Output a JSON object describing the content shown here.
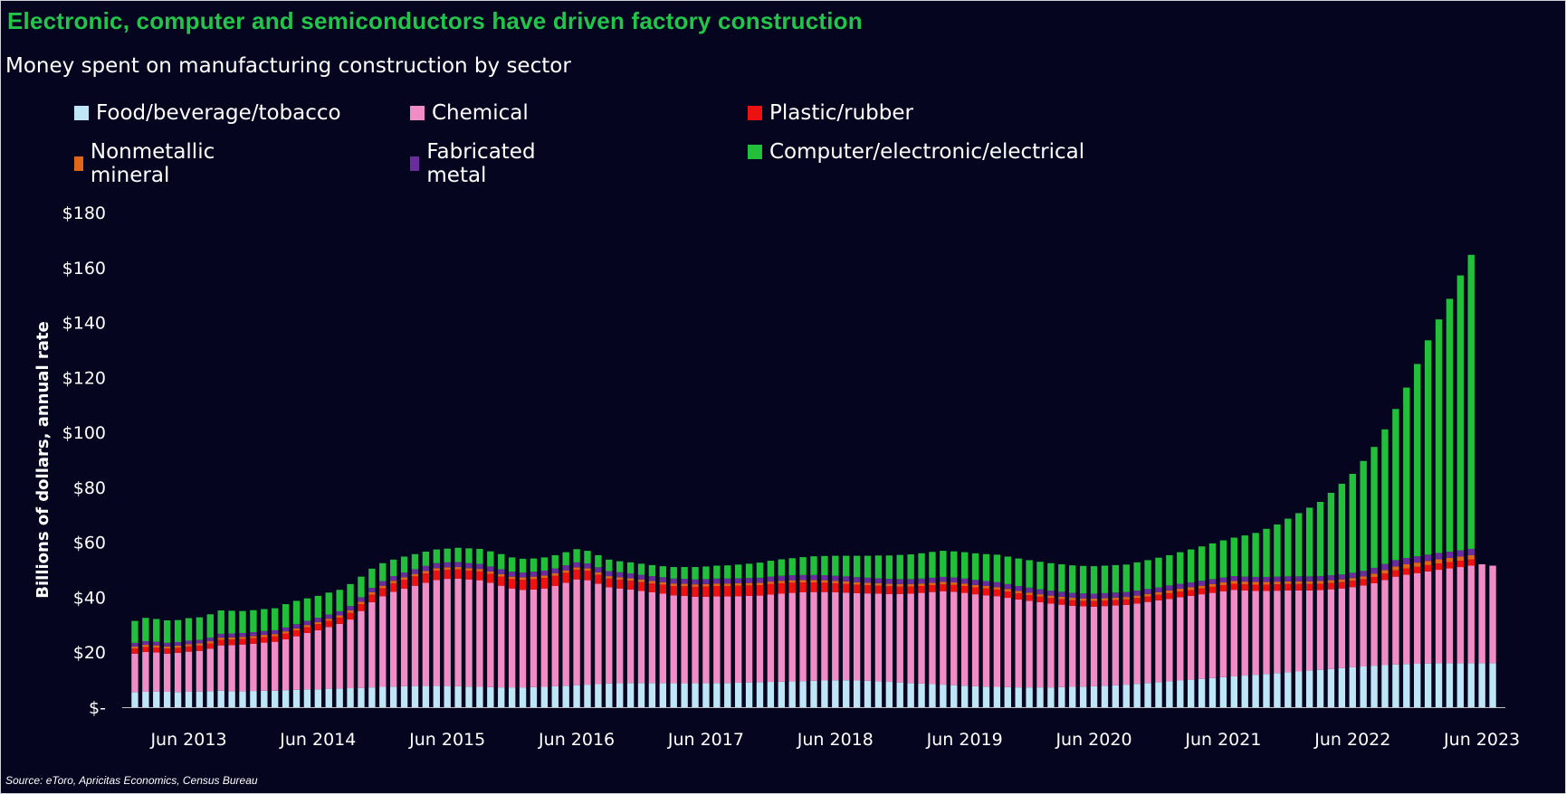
{
  "chart_data": {
    "type": "bar",
    "stacked": true,
    "title": "Electronic, computer and semiconductors have driven factory construction",
    "subtitle": "Money spent on manufacturing construction by sector",
    "ylabel": "Billions of dollars, annual rate",
    "ylim": [
      0,
      180
    ],
    "y_ticks": [
      {
        "value": 0,
        "label": "$-"
      },
      {
        "value": 20,
        "label": "$20"
      },
      {
        "value": 40,
        "label": "$40"
      },
      {
        "value": 60,
        "label": "$60"
      },
      {
        "value": 80,
        "label": "$80"
      },
      {
        "value": 100,
        "label": "$100"
      },
      {
        "value": 120,
        "label": "$120"
      },
      {
        "value": 140,
        "label": "$140"
      },
      {
        "value": 160,
        "label": "$160"
      },
      {
        "value": 180,
        "label": "$180"
      }
    ],
    "x_ticks": [
      {
        "index": 5,
        "label": "Jun 2013"
      },
      {
        "index": 17,
        "label": "Jun 2014"
      },
      {
        "index": 29,
        "label": "Jun 2015"
      },
      {
        "index": 41,
        "label": "Jun 2016"
      },
      {
        "index": 53,
        "label": "Jun 2017"
      },
      {
        "index": 65,
        "label": "Jun 2018"
      },
      {
        "index": 77,
        "label": "Jun 2019"
      },
      {
        "index": 89,
        "label": "Jun 2020"
      },
      {
        "index": 101,
        "label": "Jun 2021"
      },
      {
        "index": 113,
        "label": "Jun 2022"
      },
      {
        "index": 125,
        "label": "Jun 2023"
      }
    ],
    "x_start": "Jan 2013",
    "x_end": "Jul 2023",
    "grid": false,
    "legend_position": "top",
    "source": "Source: eToro, Apricitas Economics, Census Bureau",
    "series": [
      {
        "name": "Food/beverage/tobacco",
        "color": "#bfe6f7",
        "values": [
          5.5,
          5.6,
          5.7,
          5.6,
          5.5,
          5.6,
          5.7,
          5.8,
          6.0,
          5.8,
          5.8,
          5.9,
          6.0,
          6.0,
          6.2,
          6.3,
          6.5,
          6.5,
          6.7,
          6.8,
          6.9,
          7.0,
          7.2,
          7.4,
          7.5,
          7.6,
          7.7,
          7.8,
          7.8,
          7.7,
          7.6,
          7.5,
          7.4,
          7.3,
          7.2,
          7.2,
          7.2,
          7.3,
          7.4,
          7.6,
          7.8,
          8.0,
          8.2,
          8.4,
          8.6,
          8.7,
          8.8,
          8.8,
          8.8,
          8.8,
          8.7,
          8.7,
          8.7,
          8.7,
          8.8,
          8.8,
          8.9,
          9.0,
          9.1,
          9.2,
          9.3,
          9.4,
          9.5,
          9.6,
          9.7,
          9.8,
          9.8,
          9.7,
          9.6,
          9.4,
          9.2,
          9.0,
          8.8,
          8.6,
          8.4,
          8.2,
          8.0,
          7.8,
          7.6,
          7.5,
          7.4,
          7.3,
          7.2,
          7.2,
          7.2,
          7.2,
          7.3,
          7.4,
          7.5,
          7.6,
          7.8,
          8.0,
          8.2,
          8.5,
          8.8,
          9.1,
          9.4,
          9.7,
          10.0,
          10.3,
          10.6,
          10.9,
          11.2,
          11.5,
          11.8,
          12.1,
          12.4,
          12.7,
          13.0,
          13.3,
          13.6,
          13.9,
          14.2,
          14.5,
          14.8,
          15.1,
          15.3,
          15.5,
          15.7,
          15.8,
          15.9,
          16.0,
          16.0,
          16.0,
          16.0,
          16.0,
          16.0
        ]
      },
      {
        "name": "Chemical",
        "color": "#f08cc6",
        "values": [
          14.0,
          14.5,
          14.2,
          13.9,
          14.3,
          14.6,
          14.8,
          15.5,
          16.5,
          16.8,
          17.0,
          17.2,
          17.5,
          17.8,
          18.5,
          19.5,
          20.5,
          21.5,
          22.5,
          23.5,
          25.0,
          28.0,
          31.0,
          33.0,
          34.5,
          35.5,
          36.5,
          37.5,
          38.5,
          39.0,
          39.2,
          39.0,
          38.8,
          38.0,
          37.0,
          36.0,
          35.5,
          35.5,
          35.8,
          36.5,
          37.5,
          38.5,
          38.0,
          36.5,
          35.0,
          34.5,
          34.0,
          33.5,
          33.0,
          32.5,
          32.0,
          31.8,
          31.5,
          31.5,
          31.5,
          31.5,
          31.5,
          31.5,
          31.5,
          31.8,
          32.0,
          32.2,
          32.3,
          32.3,
          32.2,
          32.0,
          31.9,
          31.8,
          31.8,
          31.9,
          32.0,
          32.2,
          32.5,
          33.0,
          33.5,
          34.0,
          34.0,
          33.8,
          33.5,
          33.2,
          33.0,
          32.5,
          32.0,
          31.5,
          31.0,
          30.5,
          30.0,
          29.5,
          29.2,
          29.0,
          29.0,
          29.0,
          29.0,
          29.2,
          29.5,
          29.8,
          30.0,
          30.3,
          30.5,
          30.8,
          31.0,
          31.3,
          31.5,
          31.0,
          30.5,
          30.2,
          30.0,
          29.8,
          29.5,
          29.2,
          29.0,
          29.0,
          29.0,
          29.2,
          29.5,
          30.0,
          31.0,
          32.0,
          32.5,
          33.0,
          33.5,
          34.0,
          34.5,
          35.0,
          35.5,
          36.0,
          35.5
        ]
      },
      {
        "name": "Plastic/rubber",
        "color": "#ee1111",
        "values": [
          1.8,
          1.8,
          1.8,
          1.8,
          1.8,
          1.9,
          1.9,
          1.9,
          2.0,
          2.0,
          2.0,
          2.0,
          2.0,
          2.0,
          2.1,
          2.1,
          2.1,
          2.2,
          2.2,
          2.3,
          2.4,
          2.5,
          2.7,
          2.9,
          3.1,
          3.3,
          3.4,
          3.4,
          3.4,
          3.3,
          3.3,
          3.2,
          3.2,
          3.2,
          3.3,
          3.4,
          3.6,
          3.8,
          3.8,
          3.7,
          3.6,
          3.5,
          3.4,
          3.3,
          3.2,
          3.2,
          3.2,
          3.2,
          3.2,
          3.3,
          3.4,
          3.5,
          3.6,
          3.7,
          3.8,
          3.8,
          3.8,
          3.8,
          3.8,
          3.8,
          3.8,
          3.7,
          3.6,
          3.5,
          3.4,
          3.3,
          3.2,
          3.1,
          3.0,
          2.9,
          2.8,
          2.7,
          2.6,
          2.5,
          2.5,
          2.5,
          2.5,
          2.5,
          2.5,
          2.5,
          2.4,
          2.3,
          2.2,
          2.1,
          2.0,
          2.0,
          2.0,
          2.0,
          2.0,
          2.0,
          2.0,
          2.0,
          2.0,
          2.0,
          2.0,
          2.0,
          2.1,
          2.1,
          2.1,
          2.1,
          2.2,
          2.2,
          2.2,
          2.2,
          2.3,
          2.3,
          2.3,
          2.3,
          2.3,
          2.3,
          2.3,
          2.3,
          2.3,
          2.3,
          2.3,
          2.3,
          2.3,
          2.3,
          2.3,
          2.3,
          2.3,
          2.3,
          2.3,
          2.3,
          2.3
        ]
      },
      {
        "name": "Nonmetallic mineral",
        "color": "#e0661a",
        "values": [
          0.8,
          0.8,
          0.8,
          0.8,
          0.8,
          0.8,
          0.8,
          0.8,
          0.8,
          0.8,
          0.8,
          0.8,
          0.8,
          0.8,
          0.8,
          0.8,
          0.8,
          0.8,
          0.8,
          0.8,
          0.9,
          0.9,
          0.9,
          0.9,
          0.9,
          0.9,
          0.9,
          0.9,
          0.9,
          0.9,
          0.9,
          0.9,
          0.9,
          0.9,
          0.9,
          0.9,
          0.9,
          0.9,
          0.9,
          0.9,
          0.9,
          0.9,
          0.9,
          0.9,
          0.9,
          0.9,
          0.9,
          0.9,
          0.9,
          0.9,
          0.9,
          0.9,
          0.9,
          0.9,
          0.9,
          0.9,
          0.9,
          0.9,
          0.9,
          0.9,
          0.9,
          0.9,
          0.9,
          0.9,
          0.9,
          0.9,
          0.9,
          0.9,
          0.9,
          0.9,
          0.9,
          0.9,
          0.9,
          0.9,
          0.9,
          0.9,
          0.9,
          0.9,
          0.9,
          0.9,
          0.9,
          0.9,
          0.9,
          0.9,
          0.9,
          0.9,
          0.9,
          0.9,
          0.9,
          0.9,
          0.9,
          0.9,
          0.9,
          0.9,
          0.9,
          0.9,
          1.0,
          1.0,
          1.0,
          1.0,
          1.0,
          1.0,
          1.0,
          1.0,
          1.0,
          1.0,
          1.0,
          1.0,
          1.0,
          1.0,
          1.0,
          1.0,
          1.0,
          1.0,
          1.0,
          1.2,
          1.3,
          1.4,
          1.5,
          1.5,
          1.5,
          1.5,
          1.5,
          1.5,
          1.5
        ]
      },
      {
        "name": "Fabricated metal",
        "color": "#6a2d9c",
        "values": [
          1.3,
          1.3,
          1.3,
          1.3,
          1.3,
          1.3,
          1.3,
          1.3,
          1.4,
          1.4,
          1.4,
          1.4,
          1.4,
          1.4,
          1.4,
          1.5,
          1.5,
          1.5,
          1.5,
          1.5,
          1.6,
          1.6,
          1.6,
          1.7,
          1.7,
          1.7,
          1.7,
          1.8,
          1.8,
          1.8,
          1.8,
          1.8,
          1.8,
          1.8,
          1.8,
          1.8,
          1.8,
          1.8,
          1.8,
          1.8,
          1.8,
          1.8,
          1.8,
          1.8,
          1.8,
          1.8,
          1.8,
          1.8,
          1.8,
          1.8,
          1.8,
          1.8,
          1.8,
          1.8,
          1.8,
          1.8,
          1.8,
          1.8,
          1.8,
          1.8,
          1.8,
          1.8,
          1.8,
          1.8,
          1.8,
          1.8,
          1.8,
          1.8,
          1.8,
          1.8,
          1.8,
          1.8,
          1.8,
          1.8,
          1.8,
          1.8,
          1.8,
          1.8,
          1.8,
          1.8,
          1.8,
          1.8,
          1.8,
          1.8,
          1.8,
          1.8,
          1.8,
          1.8,
          1.8,
          1.8,
          1.8,
          1.8,
          1.8,
          1.8,
          1.8,
          1.8,
          1.8,
          1.8,
          1.8,
          1.8,
          1.8,
          1.8,
          1.8,
          1.8,
          1.8,
          1.8,
          1.8,
          1.8,
          1.8,
          1.8,
          1.8,
          1.8,
          1.8,
          1.9,
          2.0,
          2.1,
          2.2,
          2.3,
          2.3,
          2.3,
          2.3,
          2.3,
          2.3,
          2.3,
          2.3
        ]
      },
      {
        "name": "Computer/electronic/electrical",
        "color": "#22c03a",
        "values": [
          8.0,
          8.5,
          8.3,
          8.2,
          8.0,
          8.2,
          8.2,
          8.5,
          8.5,
          8.3,
          8.0,
          8.0,
          8.0,
          8.0,
          8.5,
          8.5,
          8.2,
          8.0,
          8.0,
          7.8,
          8.0,
          7.5,
          7.0,
          6.5,
          6.0,
          5.8,
          5.5,
          5.2,
          5.0,
          5.0,
          5.2,
          5.4,
          5.5,
          5.5,
          5.5,
          5.2,
          5.0,
          4.8,
          4.8,
          4.8,
          4.8,
          4.8,
          4.6,
          4.4,
          4.2,
          4.0,
          4.0,
          4.0,
          4.0,
          4.0,
          4.2,
          4.3,
          4.5,
          4.6,
          4.7,
          4.8,
          5.0,
          5.2,
          5.5,
          5.8,
          6.0,
          6.2,
          6.5,
          6.8,
          7.0,
          7.3,
          7.5,
          7.8,
          8.0,
          8.3,
          8.5,
          8.8,
          9.0,
          9.2,
          9.4,
          9.5,
          9.5,
          9.6,
          9.7,
          9.8,
          10.0,
          10.0,
          10.0,
          10.0,
          10.0,
          10.0,
          10.0,
          10.0,
          10.0,
          10.0,
          10.0,
          10.0,
          10.0,
          10.3,
          10.5,
          10.8,
          11.0,
          11.5,
          12.0,
          12.5,
          13.0,
          13.5,
          14.0,
          15.0,
          16.0,
          17.5,
          19.0,
          21.0,
          23.0,
          25.0,
          27.0,
          30.0,
          33.0,
          36.0,
          40.0,
          44.0,
          49.0,
          55.0,
          62.0,
          70.0,
          78.0,
          85.0,
          92.0,
          100.0,
          107.0
        ]
      }
    ]
  }
}
